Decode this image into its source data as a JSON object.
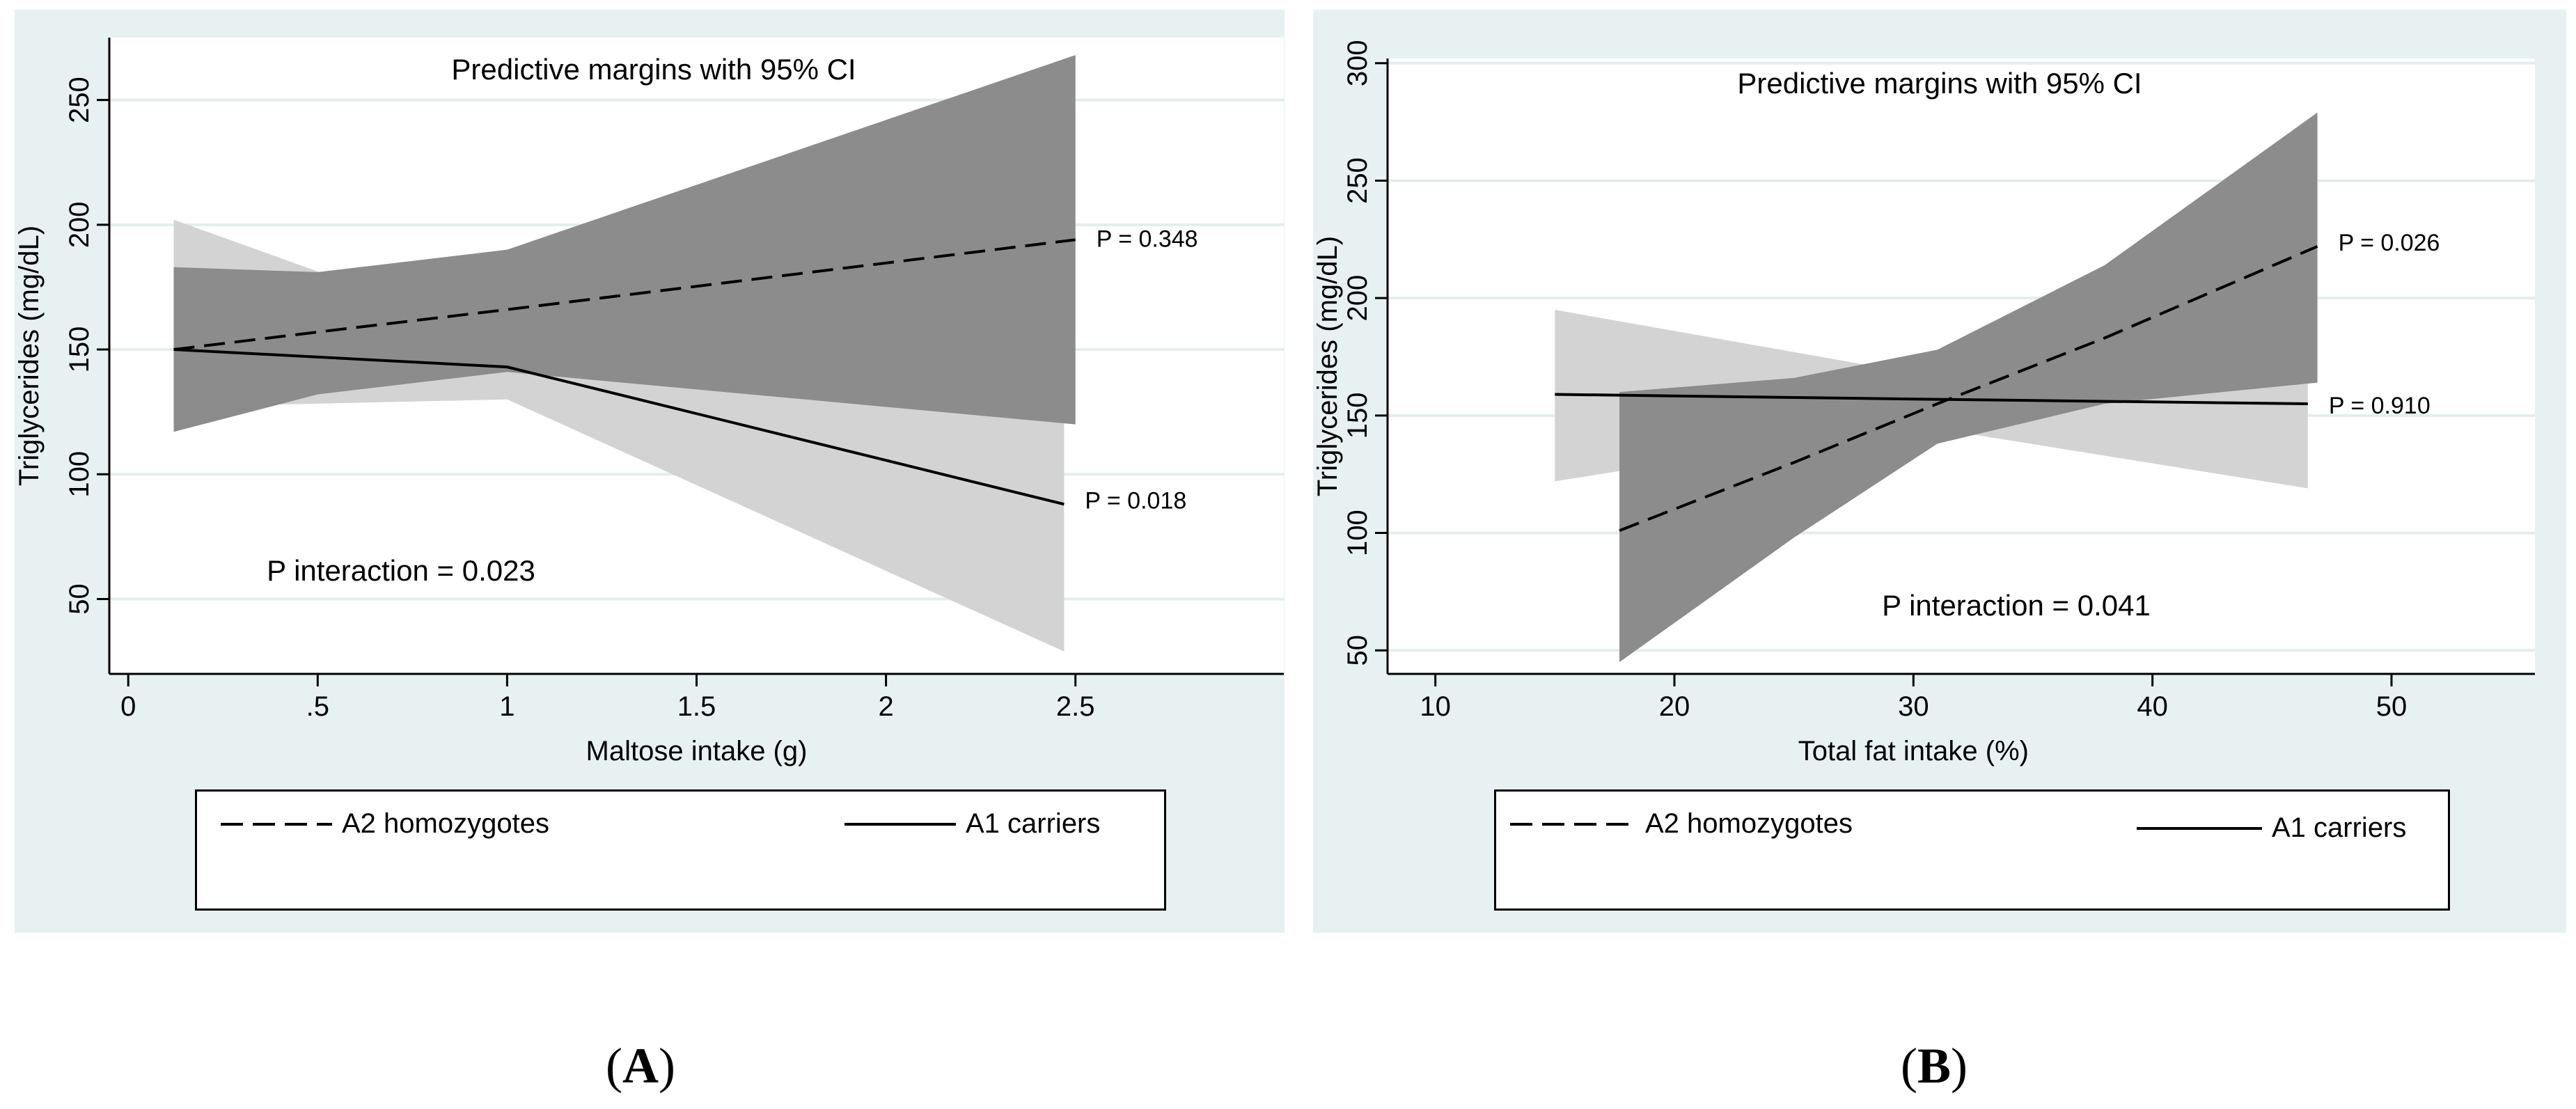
{
  "chart_data": [
    {
      "id": "A",
      "type": "line",
      "title": "Predictive margins with 95% CI",
      "xlabel": "Maltose intake (g)",
      "ylabel": "Triglycerides (mg/dL)",
      "xlim": [
        -0.05,
        3.05
      ],
      "ylim": [
        20,
        275
      ],
      "xticks": [
        {
          "v": 0,
          "label": "0"
        },
        {
          "v": 0.5,
          "label": ".5"
        },
        {
          "v": 1,
          "label": "1"
        },
        {
          "v": 1.5,
          "label": "1.5"
        },
        {
          "v": 2,
          "label": "2"
        },
        {
          "v": 2.5,
          "label": "2.5"
        }
      ],
      "yticks": [
        {
          "v": 50,
          "label": "50"
        },
        {
          "v": 100,
          "label": "100"
        },
        {
          "v": 150,
          "label": "150"
        },
        {
          "v": 200,
          "label": "200"
        },
        {
          "v": 250,
          "label": "250"
        }
      ],
      "series": [
        {
          "name": "A1 carriers",
          "style": "solid",
          "ci_color": "#d3d3d3",
          "x": [
            0.12,
            1.0,
            2.47
          ],
          "y": [
            150,
            143,
            88
          ],
          "ci_lower": [
            127,
            130,
            29
          ],
          "ci_upper": [
            202,
            154,
            148
          ],
          "p_label": "P = 0.018"
        },
        {
          "name": "A2 homozygotes",
          "style": "dashed",
          "ci_color": "#8c8c8c",
          "x": [
            0.12,
            0.5,
            1.0,
            2.5
          ],
          "y": [
            150,
            157,
            166,
            194
          ],
          "ci_lower": [
            117,
            132,
            141,
            120
          ],
          "ci_upper": [
            183,
            181,
            190,
            268
          ],
          "p_label": "P = 0.348"
        }
      ],
      "annotation": "P interaction = 0.023",
      "legend": [
        "A2 homozygotes",
        "A1 carriers"
      ],
      "panel_label": "A",
      "grid": true
    },
    {
      "id": "B",
      "type": "line",
      "title": "Predictive margins with 95% CI",
      "xlabel": "Total fat intake (%)",
      "ylabel": "Triglycerides (mg/dL)",
      "xlim": [
        8,
        56
      ],
      "ylim": [
        40,
        302
      ],
      "xticks": [
        {
          "v": 10,
          "label": "10"
        },
        {
          "v": 20,
          "label": "20"
        },
        {
          "v": 30,
          "label": "30"
        },
        {
          "v": 40,
          "label": "40"
        },
        {
          "v": 50,
          "label": "50"
        }
      ],
      "yticks": [
        {
          "v": 50,
          "label": "50"
        },
        {
          "v": 100,
          "label": "100"
        },
        {
          "v": 150,
          "label": "150"
        },
        {
          "v": 200,
          "label": "200"
        },
        {
          "v": 250,
          "label": "250"
        },
        {
          "v": 300,
          "label": "300"
        }
      ],
      "series": [
        {
          "name": "A1 carriers",
          "style": "solid",
          "ci_color": "#d3d3d3",
          "x": [
            15,
            30,
            46.5
          ],
          "y": [
            159,
            157,
            155
          ],
          "ci_lower": [
            122,
            146,
            119
          ],
          "ci_upper": [
            195,
            168,
            190
          ],
          "p_label": "P = 0.910"
        },
        {
          "name": "A2 homozygotes",
          "style": "dashed",
          "ci_color": "#8c8c8c",
          "x": [
            17.7,
            25,
            31,
            38,
            46.9
          ],
          "y": [
            101,
            130,
            155,
            183,
            222
          ],
          "ci_lower": [
            45,
            98,
            138,
            155,
            164
          ],
          "ci_upper": [
            160,
            166,
            178,
            214,
            279
          ],
          "p_label": "P = 0.026"
        }
      ],
      "annotation": "P interaction = 0.041",
      "legend": [
        "A2 homozygotes",
        "A1 carriers"
      ],
      "panel_label": "B",
      "grid": true
    }
  ]
}
